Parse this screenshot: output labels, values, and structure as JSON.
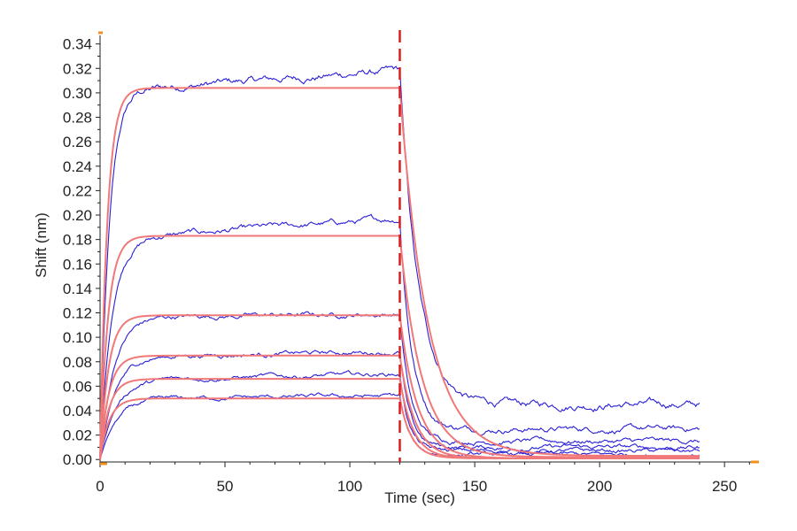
{
  "chart_data": {
    "type": "line",
    "title": "",
    "xlabel": "Time (sec)",
    "ylabel": "Shift (nm)",
    "xlim": [
      0,
      262
    ],
    "ylim": [
      -0.002,
      0.347
    ],
    "x_ticks": [
      0,
      50,
      100,
      150,
      200,
      250
    ],
    "x_tick_labels": [
      "0",
      "50",
      "100",
      "150",
      "200",
      "250"
    ],
    "y_ticks": [
      0,
      0.02,
      0.04,
      0.06,
      0.08,
      0.1,
      0.12,
      0.14,
      0.16,
      0.18,
      0.2,
      0.22,
      0.24,
      0.26,
      0.28,
      0.3,
      0.32,
      0.34
    ],
    "y_tick_labels": [
      "0.00",
      "0.02",
      "0.04",
      "0.06",
      "0.08",
      "0.10",
      "0.12",
      "0.14",
      "0.16",
      "0.18",
      "0.20",
      "0.22",
      "0.24",
      "0.26",
      "0.28",
      "0.30",
      "0.32",
      "0.34"
    ],
    "dissociation_start": 120,
    "x_end": 240,
    "data_color": "#2a1fd6",
    "fit_color": "#f07878",
    "marker_color": "#d81e1e",
    "axis_end_marker_color": "#f0901e",
    "grid": false,
    "legend": "none",
    "series": [
      {
        "role": "measured",
        "plateau": 0.304,
        "peak": 0.318,
        "residual": 0.045
      },
      {
        "role": "measured",
        "plateau": 0.183,
        "peak": 0.197,
        "residual": 0.025
      },
      {
        "role": "measured",
        "plateau": 0.117,
        "peak": 0.119,
        "residual": 0.015
      },
      {
        "role": "measured",
        "plateau": 0.085,
        "peak": 0.088,
        "residual": 0.01
      },
      {
        "role": "measured",
        "plateau": 0.066,
        "peak": 0.07,
        "residual": 0.007
      },
      {
        "role": "measured",
        "plateau": 0.05,
        "peak": 0.052,
        "residual": 0.004
      },
      {
        "role": "fit",
        "plateau": 0.304,
        "end_value": 0.003
      },
      {
        "role": "fit",
        "plateau": 0.183,
        "end_value": 0.002
      },
      {
        "role": "fit",
        "plateau": 0.118,
        "end_value": 0.001
      },
      {
        "role": "fit",
        "plateau": 0.085,
        "end_value": 0.001
      },
      {
        "role": "fit",
        "plateau": 0.066,
        "end_value": 0.001
      },
      {
        "role": "fit",
        "plateau": 0.05,
        "end_value": 0.001
      }
    ]
  }
}
